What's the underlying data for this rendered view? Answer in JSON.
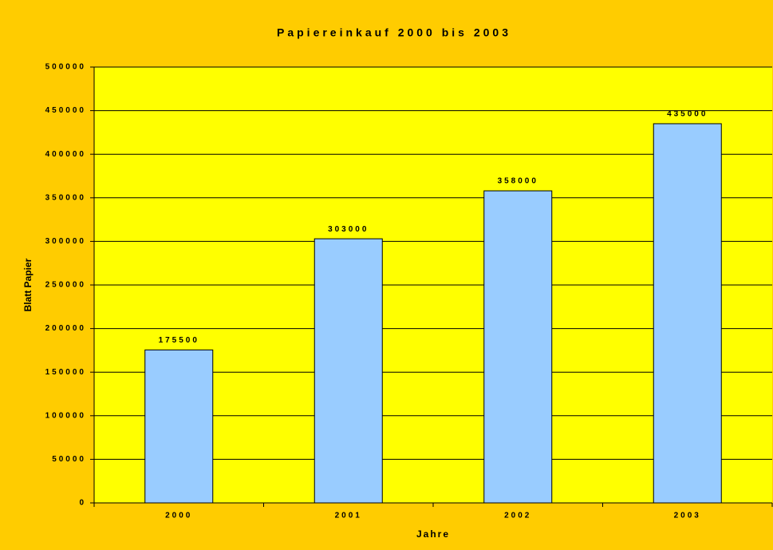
{
  "chart_data": {
    "type": "bar",
    "title": "Papiereinkauf 2000 bis 2003",
    "x_label": "Jahre",
    "y_label": "Blatt Papier",
    "categories": [
      "2000",
      "2001",
      "2002",
      "2003"
    ],
    "values": [
      175500,
      303000,
      358000,
      435000
    ],
    "color": "#99ccff",
    "ylim": [
      0,
      500000
    ],
    "yticks": [
      0,
      50000,
      100000,
      150000,
      200000,
      250000,
      300000,
      350000,
      400000,
      450000,
      500000
    ],
    "grid": true
  }
}
